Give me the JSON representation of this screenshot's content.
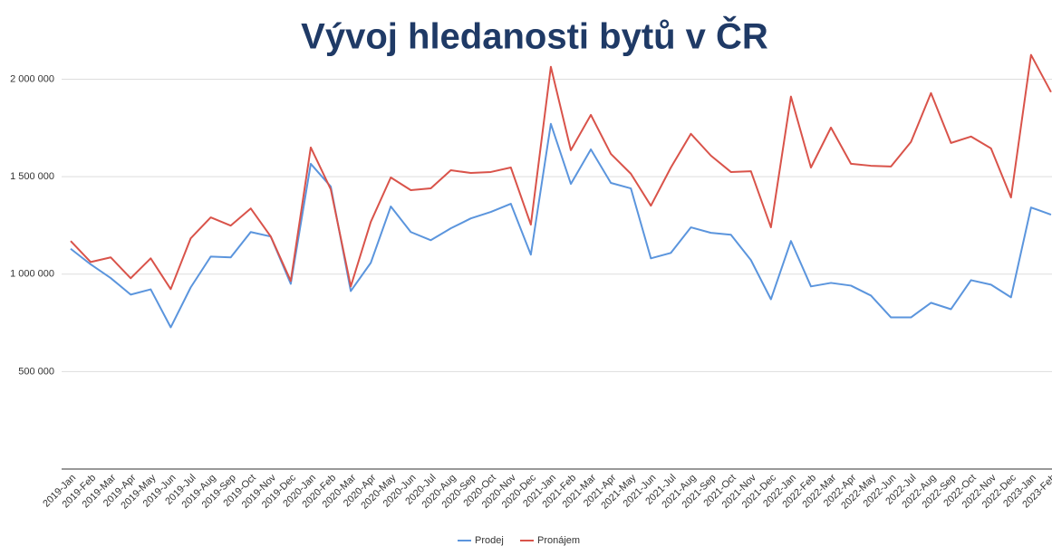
{
  "chart_data": {
    "type": "line",
    "title": "Vývoj hledanosti bytů v ČR",
    "categories": [
      "2019-Jan",
      "2019-Feb",
      "2019-Mar",
      "2019-Apr",
      "2019-May",
      "2019-Jun",
      "2019-Jul",
      "2019-Aug",
      "2019-Sep",
      "2019-Oct",
      "2019-Nov",
      "2019-Dec",
      "2020-Jan",
      "2020-Feb",
      "2020-Mar",
      "2020-Apr",
      "2020-May",
      "2020-Jun",
      "2020-Jul",
      "2020-Aug",
      "2020-Sep",
      "2020-Oct",
      "2020-Nov",
      "2020-Dec",
      "2021-Jan",
      "2021-Feb",
      "2021-Mar",
      "2021-Apr",
      "2021-May",
      "2021-Jun",
      "2021-Jul",
      "2021-Aug",
      "2021-Sep",
      "2021-Oct",
      "2021-Nov",
      "2021-Dec",
      "2022-Jan",
      "2022-Feb",
      "2022-Mar",
      "2022-Apr",
      "2022-May",
      "2022-Jun",
      "2022-Jul",
      "2022-Aug",
      "2022-Sep",
      "2022-Oct",
      "2022-Nov",
      "2022-Dec",
      "2023-Jan",
      "2023-Feb"
    ],
    "series": [
      {
        "name": "Prodej",
        "color": "#5b95dd",
        "values": [
          1130000,
          1050000,
          980000,
          895000,
          922000,
          727000,
          932000,
          1090000,
          1086000,
          1216000,
          1193000,
          950000,
          1566000,
          1449000,
          913000,
          1058000,
          1347000,
          1216000,
          1174000,
          1235000,
          1286000,
          1319000,
          1361000,
          1100000,
          1771000,
          1463000,
          1640000,
          1468000,
          1440000,
          1081000,
          1109000,
          1240000,
          1212000,
          1202000,
          1072000,
          871000,
          1170000,
          937000,
          955000,
          941000,
          890000,
          778000,
          778000,
          853000,
          820000,
          969000,
          946000,
          881000,
          1342000,
          1305000
        ]
      },
      {
        "name": "Pronájem",
        "color": "#d9534a",
        "values": [
          1170000,
          1062000,
          1086000,
          979000,
          1081000,
          923000,
          1184000,
          1291000,
          1249000,
          1337000,
          1193000,
          965000,
          1650000,
          1435000,
          937000,
          1268000,
          1496000,
          1431000,
          1440000,
          1533000,
          1519000,
          1524000,
          1547000,
          1254000,
          2064000,
          1636000,
          1817000,
          1617000,
          1515000,
          1351000,
          1547000,
          1720000,
          1608000,
          1524000,
          1528000,
          1240000,
          1911000,
          1547000,
          1752000,
          1566000,
          1556000,
          1552000,
          1678000,
          1929000,
          1673000,
          1706000,
          1645000,
          1393000,
          2125000,
          1934000
        ]
      }
    ],
    "ylim": [
      0,
      2360000
    ],
    "yticks": [
      {
        "value": 500000,
        "label": "500 000"
      },
      {
        "value": 1000000,
        "label": "1 000 000"
      },
      {
        "value": 1500000,
        "label": "1 500 000"
      },
      {
        "value": 2000000,
        "label": "2 000 000"
      }
    ],
    "grid": true,
    "legend": "bottom"
  }
}
